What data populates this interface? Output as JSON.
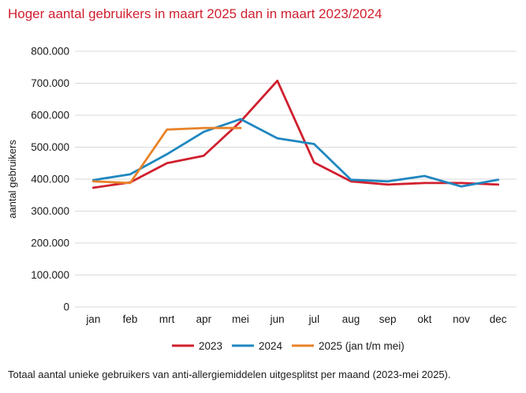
{
  "title": "Hoger aantal gebruikers in maart 2025 dan in maart 2023/2024",
  "footnote": "Totaal aantal unieke gebruikers van anti-allergiemiddelen uitgesplitst per maand (2023-mei 2025).",
  "chart_data": {
    "type": "line",
    "title": "Hoger aantal gebruikers in maart 2025 dan in maart 2023/2024",
    "ylabel": "aantal gebruikers",
    "xlabel": "",
    "categories": [
      "jan",
      "feb",
      "mrt",
      "apr",
      "mei",
      "jun",
      "jul",
      "aug",
      "sep",
      "okt",
      "nov",
      "dec"
    ],
    "ylim": [
      0,
      800000
    ],
    "yticks": [
      0,
      100000,
      200000,
      300000,
      400000,
      500000,
      600000,
      700000,
      800000
    ],
    "ytick_labels": [
      "0",
      "100.000",
      "200.000",
      "300.000",
      "400.000",
      "500.000",
      "600.000",
      "700.000",
      "800.000"
    ],
    "grid": true,
    "legend_position": "bottom",
    "series": [
      {
        "name": "2023",
        "color": "#d0202f",
        "values": [
          373000,
          390000,
          450000,
          473000,
          580000,
          708000,
          452000,
          393000,
          383000,
          388000,
          388000,
          383000
        ]
      },
      {
        "name": "2024",
        "color": "#1f87c0",
        "values": [
          397000,
          415000,
          478000,
          548000,
          588000,
          528000,
          510000,
          398000,
          393000,
          410000,
          377000,
          398000
        ]
      },
      {
        "name": "2025 (jan t/m mei)",
        "color": "#e8832a",
        "values": [
          393000,
          388000,
          555000,
          560000,
          560000,
          null,
          null,
          null,
          null,
          null,
          null,
          null
        ]
      }
    ]
  }
}
